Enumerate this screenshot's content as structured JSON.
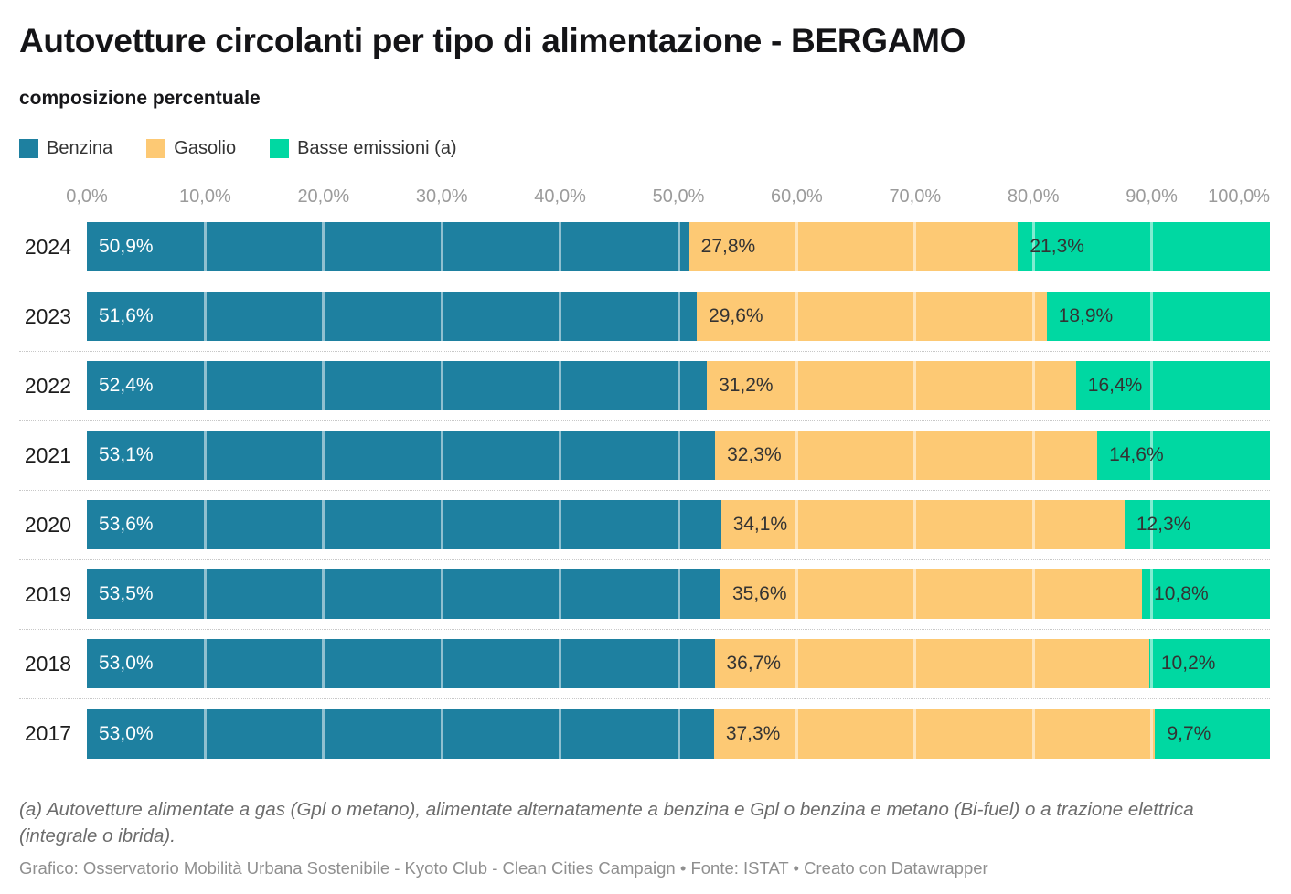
{
  "header": {
    "title": "Autovetture circolanti per tipo di alimentazione - BERGAMO",
    "subtitle": "composizione percentuale"
  },
  "legend": [
    {
      "label": "Benzina",
      "color": "#1e80a0"
    },
    {
      "label": "Gasolio",
      "color": "#fdc974"
    },
    {
      "label": "Basse emissioni (a)",
      "color": "#00d8a2"
    }
  ],
  "chart_data": {
    "type": "bar",
    "orientation": "horizontal",
    "stacked": true,
    "unit": "%",
    "title": "Autovetture circolanti per tipo di alimentazione - BERGAMO",
    "subtitle": "composizione percentuale",
    "legend_position": "top",
    "categories": [
      "2024",
      "2023",
      "2022",
      "2021",
      "2020",
      "2019",
      "2018",
      "2017"
    ],
    "series": [
      {
        "name": "Benzina",
        "color": "#1e80a0",
        "label_color": "#ffffff",
        "values": [
          50.9,
          51.6,
          52.4,
          53.1,
          53.6,
          53.5,
          53.0,
          53.0
        ],
        "labels": [
          "50,9%",
          "51,6%",
          "52,4%",
          "53,1%",
          "53,6%",
          "53,5%",
          "53,0%",
          "53,0%"
        ]
      },
      {
        "name": "Gasolio",
        "color": "#fdc974",
        "label_color": "#333333",
        "values": [
          27.8,
          29.6,
          31.2,
          32.3,
          34.1,
          35.6,
          36.7,
          37.3
        ],
        "labels": [
          "27,8%",
          "29,6%",
          "31,2%",
          "32,3%",
          "34,1%",
          "35,6%",
          "36,7%",
          "37,3%"
        ]
      },
      {
        "name": "Basse emissioni (a)",
        "color": "#00d8a2",
        "label_color": "#333333",
        "values": [
          21.3,
          18.9,
          16.4,
          14.6,
          12.3,
          10.8,
          10.2,
          9.7
        ],
        "labels": [
          "21,3%",
          "18,9%",
          "16,4%",
          "14,6%",
          "12,3%",
          "10,8%",
          "10,2%",
          "9,7%"
        ]
      }
    ],
    "x_axis": {
      "range": [
        0,
        100
      ],
      "tick_step": 10,
      "tick_labels": [
        "0,0%",
        "10,0%",
        "20,0%",
        "30,0%",
        "40,0%",
        "50,0%",
        "60,0%",
        "70,0%",
        "80,0%",
        "90,0%",
        "100,0%"
      ],
      "gridlines": true
    }
  },
  "footer": {
    "note": "(a) Autovetture alimentate a gas (Gpl o metano), alimentate alternatamente a benzina e Gpl o benzina e metano (Bi-fuel) o a trazione elettrica (integrale o ibrida).",
    "credit": "Grafico: Osservatorio Mobilità Urbana Sostenibile - Kyoto Club - Clean Cities Campaign • Fonte: ISTAT • Creato con Datawrapper"
  }
}
